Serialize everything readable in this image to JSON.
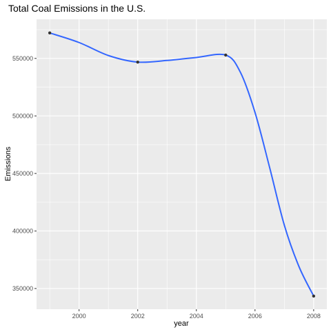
{
  "chart_data": {
    "type": "line",
    "title": "Total Coal Emissions in the U.S.",
    "xlabel": "year",
    "ylabel": "Emissions",
    "xlim": [
      1998.55,
      2008.45
    ],
    "ylim": [
      332000,
      584000
    ],
    "x_ticks": [
      2000,
      2002,
      2004,
      2006,
      2008
    ],
    "y_ticks": [
      350000,
      400000,
      450000,
      500000,
      550000
    ],
    "y_tick_labels": [
      "350000",
      "400000",
      "450000",
      "500000",
      "550000"
    ],
    "grid": true,
    "legend": "none",
    "points": [
      {
        "x": 1999,
        "y": 572126
      },
      {
        "x": 2002,
        "y": 546789
      },
      {
        "x": 2005,
        "y": 552881
      },
      {
        "x": 2008,
        "y": 343432
      }
    ],
    "smooth_curve": [
      {
        "x": 1999,
        "y": 572126
      },
      {
        "x": 2000,
        "y": 563800
      },
      {
        "x": 2001,
        "y": 552500
      },
      {
        "x": 2002,
        "y": 546789
      },
      {
        "x": 2003,
        "y": 548200
      },
      {
        "x": 2004,
        "y": 550800
      },
      {
        "x": 2005,
        "y": 552881
      },
      {
        "x": 2005.5,
        "y": 538000
      },
      {
        "x": 2006,
        "y": 503000
      },
      {
        "x": 2006.5,
        "y": 455000
      },
      {
        "x": 2007,
        "y": 405000
      },
      {
        "x": 2007.5,
        "y": 369000
      },
      {
        "x": 2008,
        "y": 343432
      }
    ],
    "colors": {
      "line": "#3366FF",
      "point": "#333333",
      "panel": "#EBEBEB",
      "grid": "#FFFFFF"
    }
  }
}
